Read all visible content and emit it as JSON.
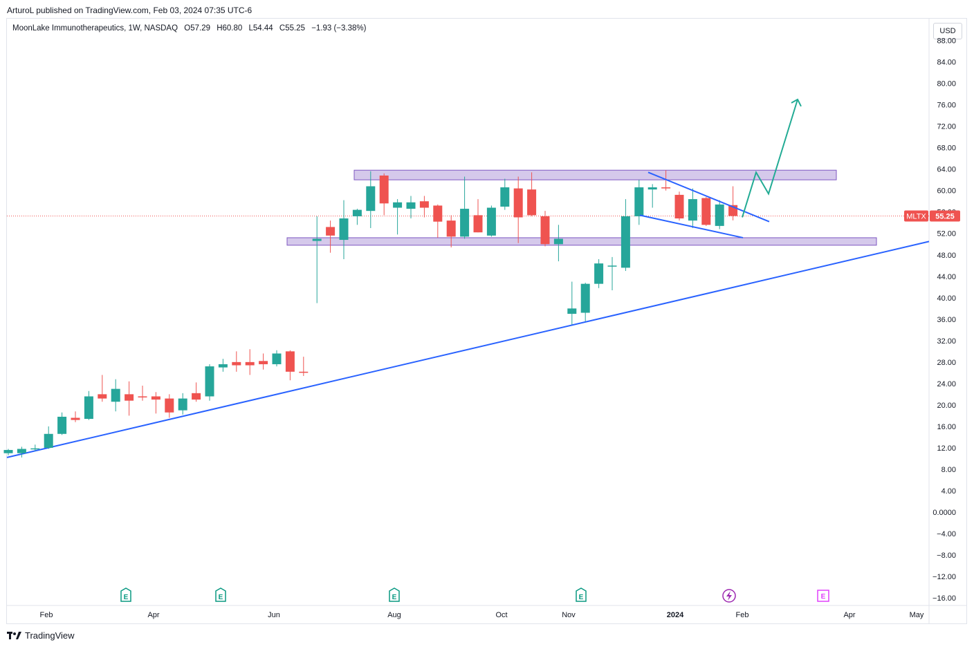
{
  "caption": "ArturoL published on TradingView.com, Feb 03, 2024 07:35 UTC-6",
  "legend": {
    "symbol_line": "MoonLake Immunotherapeutics, 1W, NASDAQ",
    "open": "O57.29",
    "high": "H60.80",
    "low": "L54.44",
    "close": "C55.25",
    "change": "−1.93 (−3.38%)"
  },
  "currency": "USD",
  "ticker": "MLTX",
  "last_price": "55.25",
  "brand": "TradingView",
  "colors": {
    "up": "#26a69a",
    "down": "#ef5350",
    "trendline": "#2962ff",
    "zone": "#b39ddb",
    "arrow": "#22ab94",
    "earnings": "#089981",
    "earnings_future": "#e040fb",
    "dividend": "#9c27b0"
  },
  "chart_data": {
    "type": "candlestick",
    "interval": "1W",
    "ylim": [
      -18,
      90
    ],
    "y_ticks": [
      "−16.00",
      "−12.00",
      "−8.00",
      "−4.00",
      "0.0000",
      "4.00",
      "8.00",
      "12.00",
      "16.00",
      "20.00",
      "24.00",
      "28.00",
      "32.00",
      "36.00",
      "40.00",
      "44.00",
      "48.00",
      "52.00",
      "56.00",
      "60.00",
      "64.00",
      "68.00",
      "72.00",
      "76.00",
      "80.00",
      "84.00",
      "88.00"
    ],
    "x_ticks": [
      "Feb",
      "Apr",
      "Jun",
      "Aug",
      "Oct",
      "Nov",
      "2024",
      "Feb",
      "Apr",
      "May"
    ],
    "candles": [
      {
        "o": 11.0,
        "h": 11.8,
        "l": 10.6,
        "c": 11.6
      },
      {
        "o": 11.0,
        "h": 12.2,
        "l": 10.2,
        "c": 11.8
      },
      {
        "o": 11.8,
        "h": 12.6,
        "l": 11.4,
        "c": 11.9
      },
      {
        "o": 12.0,
        "h": 16.0,
        "l": 11.8,
        "c": 14.6
      },
      {
        "o": 14.6,
        "h": 18.6,
        "l": 14.4,
        "c": 17.8
      },
      {
        "o": 17.6,
        "h": 18.8,
        "l": 16.8,
        "c": 17.2
      },
      {
        "o": 17.4,
        "h": 22.6,
        "l": 17.2,
        "c": 21.6
      },
      {
        "o": 22.0,
        "h": 25.6,
        "l": 20.6,
        "c": 21.2
      },
      {
        "o": 20.6,
        "h": 24.8,
        "l": 18.8,
        "c": 23.0
      },
      {
        "o": 22.0,
        "h": 24.4,
        "l": 18.0,
        "c": 20.8
      },
      {
        "o": 21.6,
        "h": 23.6,
        "l": 20.8,
        "c": 21.4
      },
      {
        "o": 21.6,
        "h": 22.4,
        "l": 18.4,
        "c": 21.0
      },
      {
        "o": 21.2,
        "h": 22.0,
        "l": 17.6,
        "c": 18.6
      },
      {
        "o": 19.0,
        "h": 22.2,
        "l": 18.2,
        "c": 21.2
      },
      {
        "o": 22.2,
        "h": 24.2,
        "l": 20.6,
        "c": 21.0
      },
      {
        "o": 21.6,
        "h": 27.6,
        "l": 20.8,
        "c": 27.2
      },
      {
        "o": 27.0,
        "h": 28.6,
        "l": 26.2,
        "c": 27.6
      },
      {
        "o": 28.0,
        "h": 30.0,
        "l": 26.2,
        "c": 27.4
      },
      {
        "o": 28.0,
        "h": 30.4,
        "l": 25.6,
        "c": 27.4
      },
      {
        "o": 28.2,
        "h": 29.6,
        "l": 26.6,
        "c": 27.6
      },
      {
        "o": 27.6,
        "h": 30.2,
        "l": 27.2,
        "c": 29.6
      },
      {
        "o": 30.0,
        "h": 30.2,
        "l": 24.6,
        "c": 26.2
      },
      {
        "o": 26.2,
        "h": 29.0,
        "l": 25.4,
        "c": 26.0
      },
      {
        "o": 50.6,
        "h": 55.2,
        "l": 39.0,
        "c": 51.0
      },
      {
        "o": 53.2,
        "h": 54.4,
        "l": 48.4,
        "c": 51.6
      },
      {
        "o": 50.8,
        "h": 58.2,
        "l": 47.2,
        "c": 54.8
      },
      {
        "o": 55.2,
        "h": 56.6,
        "l": 53.6,
        "c": 56.4
      },
      {
        "o": 56.2,
        "h": 63.6,
        "l": 53.0,
        "c": 60.8
      },
      {
        "o": 62.8,
        "h": 63.2,
        "l": 55.4,
        "c": 57.6
      },
      {
        "o": 56.8,
        "h": 58.4,
        "l": 51.8,
        "c": 57.8
      },
      {
        "o": 56.6,
        "h": 59.0,
        "l": 54.8,
        "c": 57.8
      },
      {
        "o": 58.0,
        "h": 59.0,
        "l": 55.0,
        "c": 56.8
      },
      {
        "o": 57.2,
        "h": 57.4,
        "l": 51.2,
        "c": 54.2
      },
      {
        "o": 54.4,
        "h": 55.4,
        "l": 49.4,
        "c": 51.4
      },
      {
        "o": 51.4,
        "h": 62.6,
        "l": 51.0,
        "c": 56.6
      },
      {
        "o": 55.4,
        "h": 58.4,
        "l": 52.2,
        "c": 52.2
      },
      {
        "o": 51.6,
        "h": 57.2,
        "l": 51.4,
        "c": 56.8
      },
      {
        "o": 57.0,
        "h": 62.2,
        "l": 56.4,
        "c": 60.6
      },
      {
        "o": 60.4,
        "h": 62.6,
        "l": 50.2,
        "c": 55.0
      },
      {
        "o": 60.2,
        "h": 63.4,
        "l": 55.2,
        "c": 55.4
      },
      {
        "o": 55.2,
        "h": 56.2,
        "l": 49.6,
        "c": 50.0
      },
      {
        "o": 50.0,
        "h": 53.6,
        "l": 46.8,
        "c": 51.0
      },
      {
        "o": 37.0,
        "h": 43.0,
        "l": 35.0,
        "c": 38.0
      },
      {
        "o": 37.2,
        "h": 42.8,
        "l": 35.6,
        "c": 42.6
      },
      {
        "o": 42.6,
        "h": 47.2,
        "l": 41.8,
        "c": 46.4
      },
      {
        "o": 46.0,
        "h": 47.6,
        "l": 41.4,
        "c": 46.0
      },
      {
        "o": 45.6,
        "h": 58.4,
        "l": 45.0,
        "c": 55.2
      },
      {
        "o": 55.2,
        "h": 62.0,
        "l": 53.6,
        "c": 60.6
      },
      {
        "o": 60.2,
        "h": 61.2,
        "l": 56.8,
        "c": 60.6
      },
      {
        "o": 60.6,
        "h": 63.8,
        "l": 60.0,
        "c": 60.4
      },
      {
        "o": 59.2,
        "h": 59.8,
        "l": 54.4,
        "c": 54.8
      },
      {
        "o": 54.4,
        "h": 60.4,
        "l": 53.0,
        "c": 58.4
      },
      {
        "o": 58.6,
        "h": 58.8,
        "l": 53.4,
        "c": 53.6
      },
      {
        "o": 53.4,
        "h": 58.2,
        "l": 52.8,
        "c": 57.4
      },
      {
        "o": 57.29,
        "h": 60.8,
        "l": 54.44,
        "c": 55.25
      }
    ],
    "support_trendline": [
      {
        "x": "candle 0",
        "y": 10.2
      },
      {
        "x": "right edge",
        "y": 50.5
      }
    ],
    "zones": [
      {
        "low": 62.0,
        "high": 63.8
      },
      {
        "low": 49.8,
        "high": 51.2
      }
    ],
    "wedge_lines": [
      [
        {
          "y": 63.4
        },
        {
          "y": 54.2
        }
      ],
      [
        {
          "y": 55.4
        },
        {
          "y": 51.2
        }
      ]
    ],
    "projection_path": [
      55.0,
      63.4,
      59.4,
      77.0
    ]
  }
}
